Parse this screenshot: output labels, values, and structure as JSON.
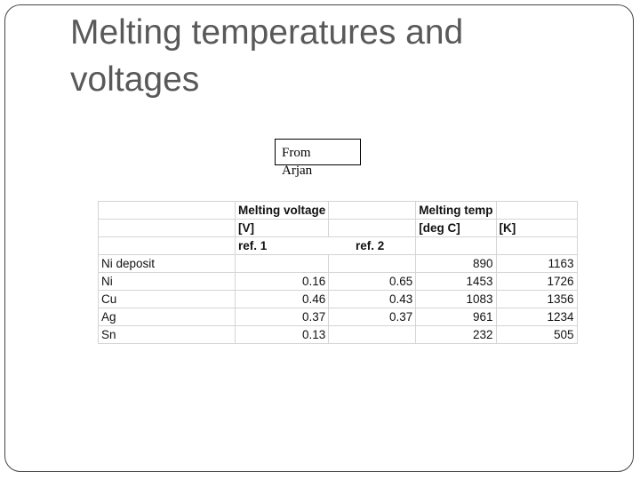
{
  "slide": {
    "title_line1": "Melting temperatures and",
    "title_line2": "voltages",
    "note": {
      "line1": "From",
      "line2": "Arjan"
    }
  },
  "table": {
    "header1": {
      "voltage": "Melting voltage",
      "temp": "Melting temp"
    },
    "header2": {
      "volt_unit": "[V]",
      "deg_unit": "[deg C]",
      "k_unit": "[K]"
    },
    "header3": {
      "ref1": "ref. 1",
      "ref2": "ref. 2"
    },
    "rows": [
      {
        "name": "Ni deposit",
        "ref1": "",
        "ref2": "",
        "degc": "890",
        "k": "1163"
      },
      {
        "name": "Ni",
        "ref1": "0.16",
        "ref2": "0.65",
        "degc": "1453",
        "k": "1726"
      },
      {
        "name": "Cu",
        "ref1": "0.46",
        "ref2": "0.43",
        "degc": "1083",
        "k": "1356"
      },
      {
        "name": "Ag",
        "ref1": "0.37",
        "ref2": "0.37",
        "degc": "961",
        "k": "1234"
      },
      {
        "name": "Sn",
        "ref1": "0.13",
        "ref2": "",
        "degc": "232",
        "k": "505"
      }
    ]
  }
}
